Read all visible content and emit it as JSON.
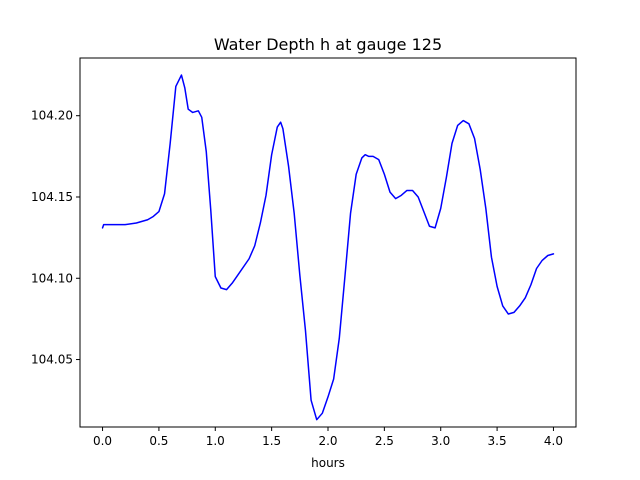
{
  "chart_data": {
    "type": "line",
    "title": "Water Depth h at gauge 125",
    "xlabel": "hours",
    "ylabel": "",
    "xlim": [
      -0.2,
      4.2
    ],
    "ylim": [
      104.0085,
      104.2355
    ],
    "xticks": [
      0.0,
      0.5,
      1.0,
      1.5,
      2.0,
      2.5,
      3.0,
      3.5,
      4.0
    ],
    "xtick_labels": [
      "0.0",
      "0.5",
      "1.0",
      "1.5",
      "2.0",
      "2.5",
      "3.0",
      "3.5",
      "4.0"
    ],
    "yticks": [
      104.05,
      104.1,
      104.15,
      104.2
    ],
    "ytick_labels": [
      "104.05",
      "104.10",
      "104.15",
      "104.20"
    ],
    "grid": false,
    "line_color": "#0000ff",
    "series": [
      {
        "name": "",
        "x": [
          0.0,
          0.01,
          0.1,
          0.2,
          0.3,
          0.4,
          0.45,
          0.5,
          0.55,
          0.6,
          0.65,
          0.7,
          0.73,
          0.76,
          0.8,
          0.85,
          0.88,
          0.92,
          0.96,
          1.0,
          1.05,
          1.1,
          1.15,
          1.2,
          1.3,
          1.35,
          1.4,
          1.45,
          1.5,
          1.55,
          1.58,
          1.6,
          1.65,
          1.7,
          1.75,
          1.8,
          1.85,
          1.9,
          1.95,
          2.0,
          2.05,
          2.1,
          2.15,
          2.2,
          2.25,
          2.3,
          2.33,
          2.36,
          2.4,
          2.45,
          2.5,
          2.55,
          2.6,
          2.65,
          2.7,
          2.75,
          2.8,
          2.85,
          2.9,
          2.95,
          3.0,
          3.05,
          3.1,
          3.15,
          3.2,
          3.25,
          3.3,
          3.35,
          3.4,
          3.45,
          3.5,
          3.55,
          3.6,
          3.65,
          3.7,
          3.75,
          3.8,
          3.85,
          3.9,
          3.95,
          4.0
        ],
        "values": [
          104.131,
          104.133,
          104.133,
          104.133,
          104.134,
          104.136,
          104.138,
          104.141,
          104.152,
          104.183,
          104.218,
          104.225,
          104.217,
          104.204,
          104.202,
          104.203,
          104.199,
          104.178,
          104.142,
          104.101,
          104.094,
          104.093,
          104.097,
          104.102,
          104.112,
          104.12,
          104.134,
          104.151,
          104.176,
          104.193,
          104.196,
          104.192,
          104.169,
          104.14,
          104.102,
          104.068,
          104.025,
          104.013,
          104.017,
          104.027,
          104.038,
          104.063,
          104.101,
          104.14,
          104.164,
          104.174,
          104.176,
          104.175,
          104.175,
          104.173,
          104.164,
          104.153,
          104.149,
          104.151,
          104.154,
          104.154,
          104.15,
          104.141,
          104.132,
          104.131,
          104.143,
          104.162,
          104.183,
          104.194,
          104.197,
          104.195,
          104.186,
          104.167,
          104.143,
          104.113,
          104.095,
          104.083,
          104.078,
          104.079,
          104.083,
          104.088,
          104.096,
          104.106,
          104.111,
          104.114,
          104.115
        ]
      }
    ]
  }
}
